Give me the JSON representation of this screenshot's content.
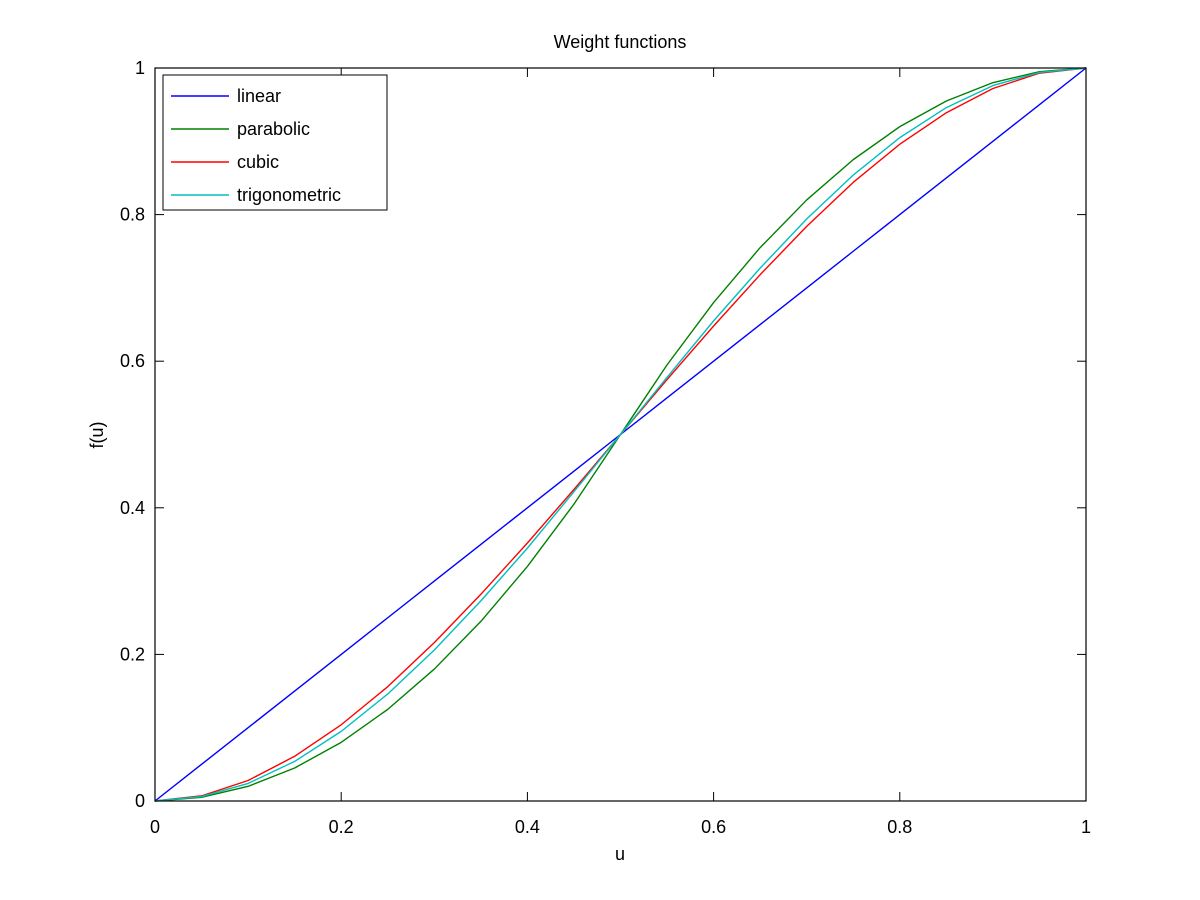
{
  "chart_data": {
    "type": "line",
    "title": "Weight functions",
    "xlabel": "u",
    "ylabel": "f(u)",
    "xlim": [
      0,
      1
    ],
    "ylim": [
      0,
      1
    ],
    "xticks": [
      "0",
      "0.2",
      "0.4",
      "0.6",
      "0.8",
      "1"
    ],
    "yticks": [
      "0",
      "0.2",
      "0.4",
      "0.6",
      "0.8",
      "1"
    ],
    "grid": false,
    "legend_position": "top-left",
    "x": [
      0,
      0.05,
      0.1,
      0.15,
      0.2,
      0.25,
      0.3,
      0.35,
      0.4,
      0.45,
      0.5,
      0.55,
      0.6,
      0.65,
      0.7,
      0.75,
      0.8,
      0.85,
      0.9,
      0.95,
      1
    ],
    "series": [
      {
        "name": "linear",
        "color": "#0000ff",
        "values": [
          0,
          0.05,
          0.1,
          0.15,
          0.2,
          0.25,
          0.3,
          0.35,
          0.4,
          0.45,
          0.5,
          0.55,
          0.6,
          0.65,
          0.7,
          0.75,
          0.8,
          0.85,
          0.9,
          0.95,
          1
        ]
      },
      {
        "name": "parabolic",
        "color": "#008000",
        "values": [
          0,
          0.005,
          0.02,
          0.045,
          0.08,
          0.125,
          0.18,
          0.245,
          0.32,
          0.405,
          0.5,
          0.595,
          0.68,
          0.755,
          0.82,
          0.875,
          0.92,
          0.955,
          0.98,
          0.995,
          1
        ]
      },
      {
        "name": "cubic",
        "color": "#ff0000",
        "values": [
          0,
          0.007,
          0.028,
          0.061,
          0.104,
          0.156,
          0.216,
          0.282,
          0.352,
          0.425,
          0.5,
          0.575,
          0.648,
          0.718,
          0.784,
          0.844,
          0.896,
          0.939,
          0.972,
          0.993,
          1
        ]
      },
      {
        "name": "trigonometric",
        "color": "#00bfbf",
        "values": [
          0,
          0.006,
          0.024,
          0.054,
          0.095,
          0.146,
          0.206,
          0.273,
          0.345,
          0.422,
          0.5,
          0.578,
          0.655,
          0.727,
          0.794,
          0.854,
          0.905,
          0.946,
          0.976,
          0.994,
          1
        ]
      }
    ]
  }
}
